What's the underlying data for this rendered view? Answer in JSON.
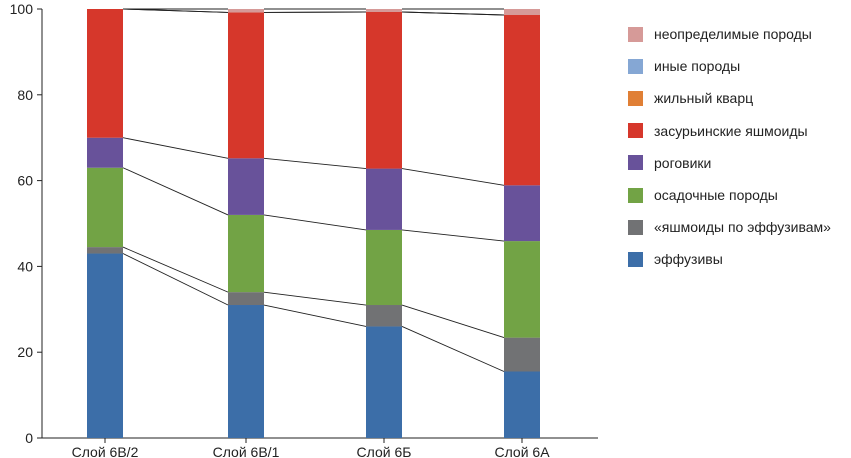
{
  "chart_data": {
    "type": "bar",
    "stacked": true,
    "normalized": true,
    "categories": [
      "Слой 6В/2",
      "Слой 6В/1",
      "Слой 6Б",
      "Слой 6А"
    ],
    "ylim": [
      0,
      100
    ],
    "yticks": [
      0,
      20,
      40,
      60,
      80,
      100
    ],
    "series": [
      {
        "name": "эффузивы",
        "color": "#3c6ea8",
        "values": [
          43.0,
          31.0,
          26.0,
          15.5
        ]
      },
      {
        "name": "«яшмоиды по эффузивам»",
        "color": "#717274",
        "values": [
          1.5,
          3.0,
          5.0,
          7.9
        ]
      },
      {
        "name": "осадочные породы",
        "color": "#72a345",
        "values": [
          18.5,
          18.0,
          17.5,
          22.5
        ]
      },
      {
        "name": "роговики",
        "color": "#68529a",
        "values": [
          7.0,
          13.2,
          14.3,
          13.0
        ]
      },
      {
        "name": "засурьинские яшмоиды",
        "color": "#d6372b",
        "values": [
          30.0,
          34.0,
          36.5,
          39.7
        ]
      },
      {
        "name": "жильный кварц",
        "color": "#e07f35",
        "values": [
          0.0,
          0.0,
          0.0,
          0.0
        ]
      },
      {
        "name": "иные породы",
        "color": "#85a7d4",
        "values": [
          0.0,
          0.0,
          0.0,
          0.0
        ]
      },
      {
        "name": "неопределимые породы",
        "color": "#d69a98",
        "values": [
          0.0,
          0.8,
          0.7,
          1.4
        ]
      }
    ],
    "connector_lines": true,
    "legend_position": "right"
  },
  "legend_order": [
    7,
    6,
    5,
    4,
    3,
    2,
    1,
    0
  ]
}
